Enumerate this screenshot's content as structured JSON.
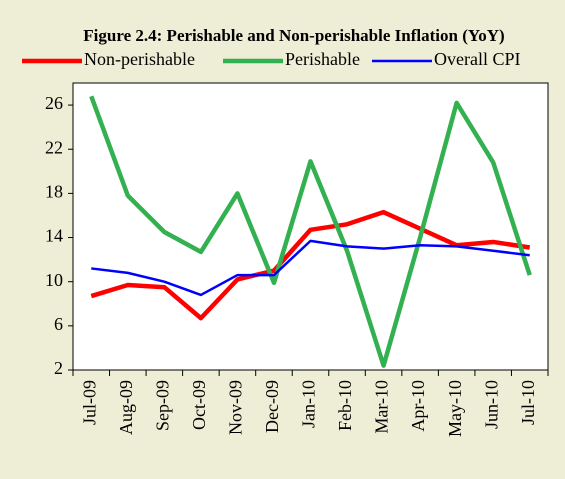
{
  "chart_data": {
    "type": "line",
    "title": "Figure 2.4: Perishable and Non-perishable Inflation (YoY)",
    "categories": [
      "Jul-09",
      "Aug-09",
      "Sep-09",
      "Oct-09",
      "Nov-09",
      "Dec-09",
      "Jan-10",
      "Feb-10",
      "Mar-10",
      "Apr-10",
      "May-10",
      "Jun-10",
      "Jul-10"
    ],
    "series": [
      {
        "name": "Non-perishable",
        "color": "#ff0000",
        "values": [
          8.7,
          9.7,
          9.5,
          6.7,
          10.2,
          11.0,
          14.7,
          15.2,
          16.3,
          14.8,
          13.3,
          13.6,
          13.1
        ]
      },
      {
        "name": "Perishable",
        "color": "#33b04f",
        "values": [
          26.8,
          17.8,
          14.5,
          12.7,
          18.0,
          9.9,
          20.9,
          12.8,
          2.4,
          14.0,
          26.2,
          20.8,
          10.6
        ]
      },
      {
        "name": "Overall CPI",
        "color": "#0000ff",
        "values": [
          11.2,
          10.8,
          10.0,
          8.8,
          10.6,
          10.6,
          13.7,
          13.2,
          13.0,
          13.3,
          13.2,
          12.8,
          12.4
        ]
      }
    ],
    "ylim": [
      2,
      28
    ],
    "yticks": [
      2,
      6,
      10,
      14,
      18,
      22,
      26
    ],
    "grid": false,
    "legend": "top"
  }
}
